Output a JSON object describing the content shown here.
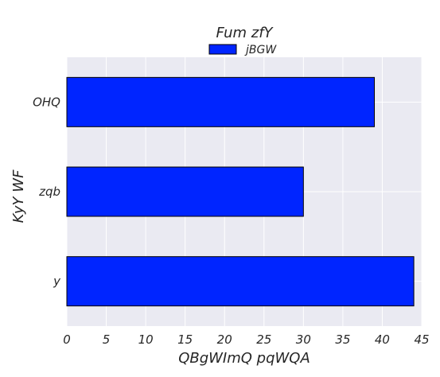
{
  "chart_data": {
    "type": "bar",
    "orientation": "horizontal",
    "title": "Fum zfY",
    "xlabel": "QBgWImQ pqWQA",
    "ylabel": "KyY WF",
    "categories": [
      "OHQ",
      "zqb",
      "y"
    ],
    "series": [
      {
        "name": "jBGW",
        "values": [
          39,
          30,
          44
        ]
      }
    ],
    "xlim": [
      0,
      45
    ],
    "xticks": [
      0,
      5,
      10,
      15,
      20,
      25,
      30,
      35,
      40,
      45
    ],
    "grid": true,
    "legend_position": "top-center",
    "colors": {
      "bar": "#0025ff",
      "bar_edge": "#000000",
      "plot_bg": "#eaeaf2",
      "grid": "#ffffff"
    }
  }
}
